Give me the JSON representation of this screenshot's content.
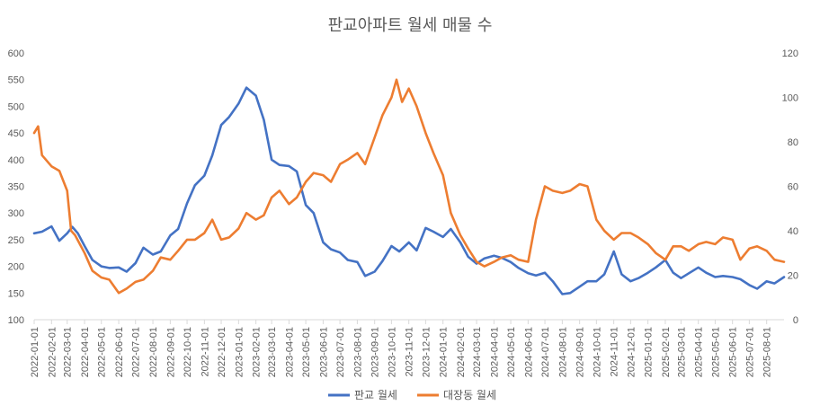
{
  "chart_data": {
    "type": "line",
    "title": "판교아파트 월세 매물 수",
    "x_labels": [
      "2022-01-01",
      "2022-02-01",
      "2022-03-01",
      "2022-04-01",
      "2022-05-01",
      "2022-06-01",
      "2022-07-01",
      "2022-08-01",
      "2022-09-01",
      "2022-10-01",
      "2022-11-01",
      "2022-12-01",
      "2023-01-01",
      "2023-02-01",
      "2023-03-01",
      "2023-04-01",
      "2023-05-01",
      "2023-06-01",
      "2023-07-01",
      "2023-08-01",
      "2023-09-01",
      "2023-10-01",
      "2023-11-01",
      "2023-12-01",
      "2024-01-01",
      "2024-02-01",
      "2024-03-01",
      "2024-04-01",
      "2024-05-01",
      "2024-06-01",
      "2024-07-01",
      "2024-08-01",
      "2024-09-01",
      "2024-10-01",
      "2024-11-01",
      "2024-12-01",
      "2025-01-01",
      "2025-02-01",
      "2025-03-01",
      "2025-04-01",
      "2025-05-01",
      "2025-06-01",
      "2025-07-01",
      "2025-08-01"
    ],
    "y_left": {
      "min": 100,
      "max": 600,
      "ticks": [
        "100",
        "150",
        "200",
        "250",
        "300",
        "350",
        "400",
        "450",
        "500",
        "550",
        "600"
      ]
    },
    "y_right": {
      "min": 0,
      "max": 120,
      "ticks": [
        "0",
        "20",
        "40",
        "60",
        "80",
        "100",
        "120"
      ]
    },
    "grid": false,
    "legend_position": "bottom",
    "series": [
      {
        "name": "판교 월세",
        "axis": "left",
        "color": "#4472C4",
        "points": [
          [
            "2022-01-01",
            262
          ],
          [
            "2022-01-15",
            265
          ],
          [
            "2022-02-01",
            275
          ],
          [
            "2022-02-15",
            248
          ],
          [
            "2022-03-01",
            262
          ],
          [
            "2022-03-10",
            274
          ],
          [
            "2022-03-20",
            262
          ],
          [
            "2022-04-01",
            238
          ],
          [
            "2022-04-15",
            212
          ],
          [
            "2022-05-01",
            200
          ],
          [
            "2022-05-15",
            197
          ],
          [
            "2022-06-01",
            198
          ],
          [
            "2022-06-15",
            190
          ],
          [
            "2022-07-01",
            206
          ],
          [
            "2022-07-15",
            235
          ],
          [
            "2022-08-01",
            222
          ],
          [
            "2022-08-15",
            228
          ],
          [
            "2022-09-01",
            258
          ],
          [
            "2022-09-15",
            270
          ],
          [
            "2022-10-01",
            318
          ],
          [
            "2022-10-15",
            352
          ],
          [
            "2022-11-01",
            370
          ],
          [
            "2022-11-15",
            408
          ],
          [
            "2022-12-01",
            465
          ],
          [
            "2022-12-15",
            480
          ],
          [
            "2023-01-01",
            505
          ],
          [
            "2023-01-15",
            535
          ],
          [
            "2023-02-01",
            520
          ],
          [
            "2023-02-15",
            475
          ],
          [
            "2023-03-01",
            400
          ],
          [
            "2023-03-15",
            390
          ],
          [
            "2023-04-01",
            388
          ],
          [
            "2023-04-15",
            378
          ],
          [
            "2023-05-01",
            315
          ],
          [
            "2023-05-15",
            300
          ],
          [
            "2023-06-01",
            245
          ],
          [
            "2023-06-15",
            232
          ],
          [
            "2023-07-01",
            226
          ],
          [
            "2023-07-15",
            212
          ],
          [
            "2023-08-01",
            208
          ],
          [
            "2023-08-15",
            182
          ],
          [
            "2023-09-01",
            190
          ],
          [
            "2023-09-15",
            210
          ],
          [
            "2023-10-01",
            238
          ],
          [
            "2023-10-15",
            228
          ],
          [
            "2023-11-01",
            245
          ],
          [
            "2023-11-15",
            230
          ],
          [
            "2023-12-01",
            272
          ],
          [
            "2023-12-15",
            265
          ],
          [
            "2024-01-01",
            255
          ],
          [
            "2024-01-15",
            270
          ],
          [
            "2024-02-01",
            245
          ],
          [
            "2024-02-15",
            218
          ],
          [
            "2024-03-01",
            205
          ],
          [
            "2024-03-15",
            215
          ],
          [
            "2024-04-01",
            220
          ],
          [
            "2024-04-15",
            216
          ],
          [
            "2024-05-01",
            208
          ],
          [
            "2024-05-15",
            197
          ],
          [
            "2024-06-01",
            187
          ],
          [
            "2024-06-15",
            183
          ],
          [
            "2024-07-01",
            188
          ],
          [
            "2024-07-15",
            172
          ],
          [
            "2024-08-01",
            148
          ],
          [
            "2024-08-15",
            150
          ],
          [
            "2024-09-01",
            162
          ],
          [
            "2024-09-15",
            172
          ],
          [
            "2024-10-01",
            172
          ],
          [
            "2024-10-15",
            185
          ],
          [
            "2024-11-01",
            228
          ],
          [
            "2024-11-15",
            185
          ],
          [
            "2024-12-01",
            172
          ],
          [
            "2024-12-15",
            178
          ],
          [
            "2025-01-01",
            188
          ],
          [
            "2025-01-15",
            198
          ],
          [
            "2025-02-01",
            212
          ],
          [
            "2025-02-15",
            188
          ],
          [
            "2025-03-01",
            178
          ],
          [
            "2025-03-15",
            187
          ],
          [
            "2025-04-01",
            198
          ],
          [
            "2025-04-15",
            188
          ],
          [
            "2025-05-01",
            180
          ],
          [
            "2025-05-15",
            182
          ],
          [
            "2025-06-01",
            180
          ],
          [
            "2025-06-15",
            176
          ],
          [
            "2025-07-01",
            165
          ],
          [
            "2025-07-15",
            158
          ],
          [
            "2025-08-01",
            172
          ],
          [
            "2025-08-15",
            168
          ],
          [
            "2025-09-01",
            180
          ]
        ]
      },
      {
        "name": "대장동 월세",
        "axis": "right",
        "color": "#ED7D31",
        "points": [
          [
            "2022-01-01",
            84
          ],
          [
            "2022-01-08",
            87
          ],
          [
            "2022-01-15",
            74
          ],
          [
            "2022-02-01",
            69
          ],
          [
            "2022-02-15",
            67
          ],
          [
            "2022-03-01",
            58
          ],
          [
            "2022-03-08",
            40
          ],
          [
            "2022-03-15",
            38
          ],
          [
            "2022-04-01",
            30
          ],
          [
            "2022-04-15",
            22
          ],
          [
            "2022-05-01",
            19
          ],
          [
            "2022-05-15",
            18
          ],
          [
            "2022-06-01",
            12
          ],
          [
            "2022-06-15",
            14
          ],
          [
            "2022-07-01",
            17
          ],
          [
            "2022-07-15",
            18
          ],
          [
            "2022-08-01",
            22
          ],
          [
            "2022-08-15",
            28
          ],
          [
            "2022-09-01",
            27
          ],
          [
            "2022-09-15",
            31
          ],
          [
            "2022-10-01",
            36
          ],
          [
            "2022-10-15",
            36
          ],
          [
            "2022-11-01",
            39
          ],
          [
            "2022-11-15",
            45
          ],
          [
            "2022-12-01",
            36
          ],
          [
            "2022-12-15",
            37
          ],
          [
            "2023-01-01",
            41
          ],
          [
            "2023-01-15",
            48
          ],
          [
            "2023-02-01",
            45
          ],
          [
            "2023-02-15",
            47
          ],
          [
            "2023-03-01",
            55
          ],
          [
            "2023-03-15",
            58
          ],
          [
            "2023-04-01",
            52
          ],
          [
            "2023-04-15",
            55
          ],
          [
            "2023-05-01",
            62
          ],
          [
            "2023-05-15",
            66
          ],
          [
            "2023-06-01",
            65
          ],
          [
            "2023-06-15",
            62
          ],
          [
            "2023-07-01",
            70
          ],
          [
            "2023-07-15",
            72
          ],
          [
            "2023-08-01",
            75
          ],
          [
            "2023-08-15",
            70
          ],
          [
            "2023-09-01",
            82
          ],
          [
            "2023-09-15",
            92
          ],
          [
            "2023-10-01",
            100
          ],
          [
            "2023-10-10",
            108
          ],
          [
            "2023-10-20",
            98
          ],
          [
            "2023-11-01",
            104
          ],
          [
            "2023-11-15",
            96
          ],
          [
            "2023-12-01",
            84
          ],
          [
            "2023-12-15",
            75
          ],
          [
            "2024-01-01",
            65
          ],
          [
            "2024-01-15",
            48
          ],
          [
            "2024-02-01",
            38
          ],
          [
            "2024-02-15",
            32
          ],
          [
            "2024-03-01",
            26
          ],
          [
            "2024-03-15",
            24
          ],
          [
            "2024-04-01",
            26
          ],
          [
            "2024-04-15",
            28
          ],
          [
            "2024-05-01",
            29
          ],
          [
            "2024-05-15",
            27
          ],
          [
            "2024-06-01",
            26
          ],
          [
            "2024-06-15",
            45
          ],
          [
            "2024-07-01",
            60
          ],
          [
            "2024-07-15",
            58
          ],
          [
            "2024-08-01",
            57
          ],
          [
            "2024-08-15",
            58
          ],
          [
            "2024-09-01",
            61
          ],
          [
            "2024-09-15",
            60
          ],
          [
            "2024-10-01",
            45
          ],
          [
            "2024-10-15",
            40
          ],
          [
            "2024-11-01",
            36
          ],
          [
            "2024-11-15",
            39
          ],
          [
            "2024-12-01",
            39
          ],
          [
            "2024-12-15",
            37
          ],
          [
            "2025-01-01",
            34
          ],
          [
            "2025-01-15",
            30
          ],
          [
            "2025-02-01",
            27
          ],
          [
            "2025-02-15",
            33
          ],
          [
            "2025-03-01",
            33
          ],
          [
            "2025-03-15",
            31
          ],
          [
            "2025-04-01",
            34
          ],
          [
            "2025-04-15",
            35
          ],
          [
            "2025-05-01",
            34
          ],
          [
            "2025-05-15",
            37
          ],
          [
            "2025-06-01",
            36
          ],
          [
            "2025-06-15",
            27
          ],
          [
            "2025-07-01",
            32
          ],
          [
            "2025-07-15",
            33
          ],
          [
            "2025-08-01",
            31
          ],
          [
            "2025-08-15",
            27
          ],
          [
            "2025-09-01",
            26
          ]
        ]
      }
    ]
  }
}
